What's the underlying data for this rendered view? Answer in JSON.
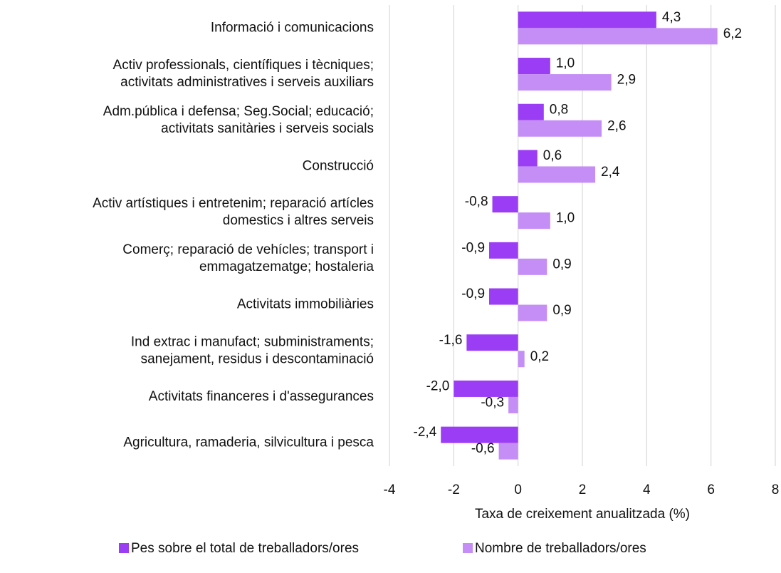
{
  "chart_data": {
    "type": "barh",
    "categories": [
      [
        "Informació i comunicacions"
      ],
      [
        "Activ professionals, científiques i tècniques;",
        "activitats administratives i serveis auxiliars"
      ],
      [
        "Adm.pública i defensa; Seg.Social; educació;",
        "activitats sanitàries i serveis socials"
      ],
      [
        "Construcció"
      ],
      [
        "Activ artístiques i entretenim; reparació artícles",
        "domestics i altres serveis"
      ],
      [
        "Comerç; reparació de vehícles; transport i",
        "emmagatzematge; hostaleria"
      ],
      [
        "Activitats immobiliàries"
      ],
      [
        "Ind extrac i manufact; subministraments;",
        "sanejament, residus i descontaminació"
      ],
      [
        "Activitats financeres i d'assegurances"
      ],
      [
        "Agricultura, ramaderia, silvicultura i pesca"
      ]
    ],
    "series": [
      {
        "name": "Pes sobre el total de treballadors/ores",
        "color": "#9b3df5",
        "values": [
          4.3,
          1.0,
          0.8,
          0.6,
          -0.8,
          -0.9,
          -0.9,
          -1.6,
          -2.0,
          -2.4
        ],
        "value_labels": [
          "4,3",
          "1,0",
          "0,8",
          "0,6",
          "-0,8",
          "-0,9",
          "-0,9",
          "-1,6",
          "-2,0",
          "-2,4"
        ]
      },
      {
        "name": "Nombre de treballadors/ores",
        "color": "#c58ef6",
        "values": [
          6.2,
          2.9,
          2.6,
          2.4,
          1.0,
          0.9,
          0.9,
          0.2,
          -0.3,
          -0.6
        ],
        "value_labels": [
          "6,2",
          "2,9",
          "2,6",
          "2,4",
          "1,0",
          "0,9",
          "0,9",
          "0,2",
          "-0,3",
          "-0,6"
        ]
      }
    ],
    "xlabel": "Taxa de creixement anualitzada (%)",
    "xlim": [
      -4,
      8
    ],
    "xticks": [
      -4,
      -2,
      0,
      2,
      4,
      6,
      8
    ],
    "grid": true,
    "legend": "bottom"
  }
}
